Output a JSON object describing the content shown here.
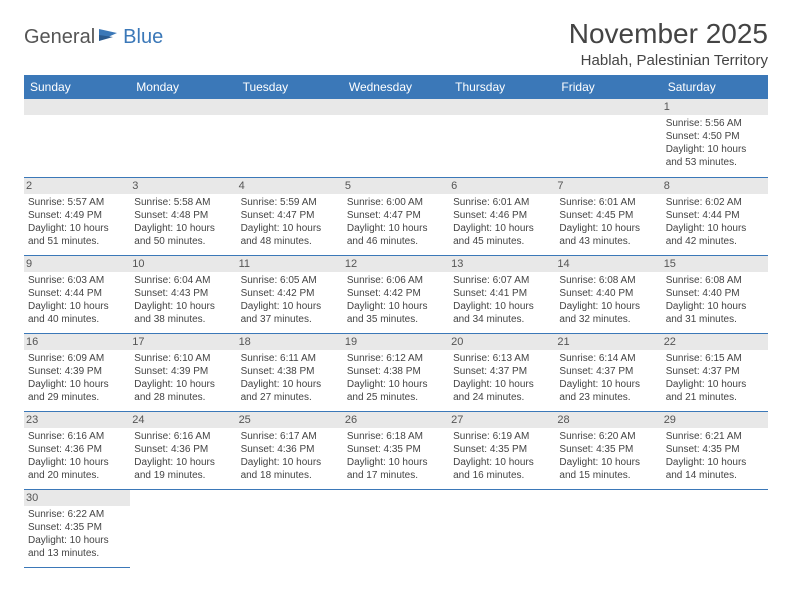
{
  "logo": {
    "text1": "General",
    "text2": "Blue"
  },
  "title": "November 2025",
  "location": "Hablah, Palestinian Territory",
  "colors": {
    "header_bg": "#3b78b8",
    "header_text": "#ffffff",
    "daynum_bg": "#e8e8e8",
    "body_text": "#444444",
    "border": "#3b78b8"
  },
  "weekdays": [
    "Sunday",
    "Monday",
    "Tuesday",
    "Wednesday",
    "Thursday",
    "Friday",
    "Saturday"
  ],
  "weeks": [
    [
      null,
      null,
      null,
      null,
      null,
      null,
      {
        "n": "1",
        "sr": "5:56 AM",
        "ss": "4:50 PM",
        "dl": "10 hours and 53 minutes."
      }
    ],
    [
      {
        "n": "2",
        "sr": "5:57 AM",
        "ss": "4:49 PM",
        "dl": "10 hours and 51 minutes."
      },
      {
        "n": "3",
        "sr": "5:58 AM",
        "ss": "4:48 PM",
        "dl": "10 hours and 50 minutes."
      },
      {
        "n": "4",
        "sr": "5:59 AM",
        "ss": "4:47 PM",
        "dl": "10 hours and 48 minutes."
      },
      {
        "n": "5",
        "sr": "6:00 AM",
        "ss": "4:47 PM",
        "dl": "10 hours and 46 minutes."
      },
      {
        "n": "6",
        "sr": "6:01 AM",
        "ss": "4:46 PM",
        "dl": "10 hours and 45 minutes."
      },
      {
        "n": "7",
        "sr": "6:01 AM",
        "ss": "4:45 PM",
        "dl": "10 hours and 43 minutes."
      },
      {
        "n": "8",
        "sr": "6:02 AM",
        "ss": "4:44 PM",
        "dl": "10 hours and 42 minutes."
      }
    ],
    [
      {
        "n": "9",
        "sr": "6:03 AM",
        "ss": "4:44 PM",
        "dl": "10 hours and 40 minutes."
      },
      {
        "n": "10",
        "sr": "6:04 AM",
        "ss": "4:43 PM",
        "dl": "10 hours and 38 minutes."
      },
      {
        "n": "11",
        "sr": "6:05 AM",
        "ss": "4:42 PM",
        "dl": "10 hours and 37 minutes."
      },
      {
        "n": "12",
        "sr": "6:06 AM",
        "ss": "4:42 PM",
        "dl": "10 hours and 35 minutes."
      },
      {
        "n": "13",
        "sr": "6:07 AM",
        "ss": "4:41 PM",
        "dl": "10 hours and 34 minutes."
      },
      {
        "n": "14",
        "sr": "6:08 AM",
        "ss": "4:40 PM",
        "dl": "10 hours and 32 minutes."
      },
      {
        "n": "15",
        "sr": "6:08 AM",
        "ss": "4:40 PM",
        "dl": "10 hours and 31 minutes."
      }
    ],
    [
      {
        "n": "16",
        "sr": "6:09 AM",
        "ss": "4:39 PM",
        "dl": "10 hours and 29 minutes."
      },
      {
        "n": "17",
        "sr": "6:10 AM",
        "ss": "4:39 PM",
        "dl": "10 hours and 28 minutes."
      },
      {
        "n": "18",
        "sr": "6:11 AM",
        "ss": "4:38 PM",
        "dl": "10 hours and 27 minutes."
      },
      {
        "n": "19",
        "sr": "6:12 AM",
        "ss": "4:38 PM",
        "dl": "10 hours and 25 minutes."
      },
      {
        "n": "20",
        "sr": "6:13 AM",
        "ss": "4:37 PM",
        "dl": "10 hours and 24 minutes."
      },
      {
        "n": "21",
        "sr": "6:14 AM",
        "ss": "4:37 PM",
        "dl": "10 hours and 23 minutes."
      },
      {
        "n": "22",
        "sr": "6:15 AM",
        "ss": "4:37 PM",
        "dl": "10 hours and 21 minutes."
      }
    ],
    [
      {
        "n": "23",
        "sr": "6:16 AM",
        "ss": "4:36 PM",
        "dl": "10 hours and 20 minutes."
      },
      {
        "n": "24",
        "sr": "6:16 AM",
        "ss": "4:36 PM",
        "dl": "10 hours and 19 minutes."
      },
      {
        "n": "25",
        "sr": "6:17 AM",
        "ss": "4:36 PM",
        "dl": "10 hours and 18 minutes."
      },
      {
        "n": "26",
        "sr": "6:18 AM",
        "ss": "4:35 PM",
        "dl": "10 hours and 17 minutes."
      },
      {
        "n": "27",
        "sr": "6:19 AM",
        "ss": "4:35 PM",
        "dl": "10 hours and 16 minutes."
      },
      {
        "n": "28",
        "sr": "6:20 AM",
        "ss": "4:35 PM",
        "dl": "10 hours and 15 minutes."
      },
      {
        "n": "29",
        "sr": "6:21 AM",
        "ss": "4:35 PM",
        "dl": "10 hours and 14 minutes."
      }
    ],
    [
      {
        "n": "30",
        "sr": "6:22 AM",
        "ss": "4:35 PM",
        "dl": "10 hours and 13 minutes."
      },
      null,
      null,
      null,
      null,
      null,
      null
    ]
  ],
  "labels": {
    "sunrise": "Sunrise: ",
    "sunset": "Sunset: ",
    "daylight": "Daylight: "
  }
}
